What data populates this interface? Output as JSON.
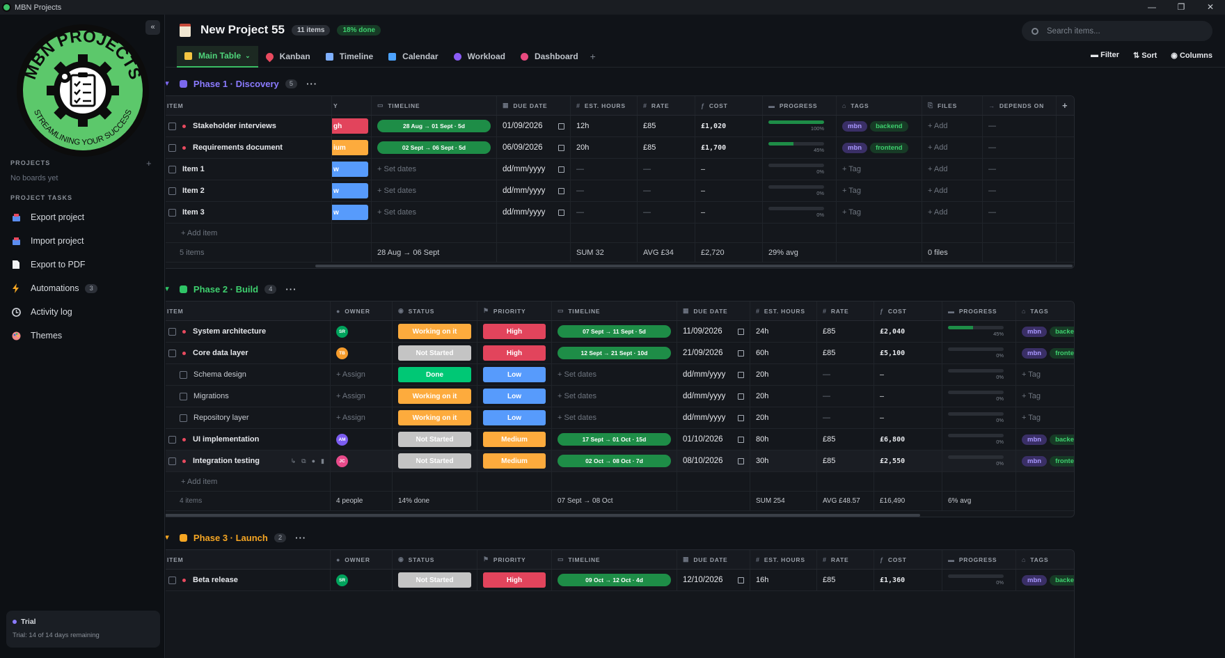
{
  "window": {
    "title": "MBN Projects",
    "controls": [
      "—",
      "❐",
      "✕"
    ]
  },
  "sidebar": {
    "collapse_label": "«",
    "logo_text_top": "MBN PROJECTS",
    "logo_text_bottom": "STREAMLINING YOUR SUCCESS",
    "projects_label": "PROJECTS",
    "projects_add": "+",
    "no_boards": "No boards yet",
    "tasks_label": "PROJECT TASKS",
    "items": [
      {
        "label": "Export project",
        "icon": "export-icon"
      },
      {
        "label": "Import project",
        "icon": "import-icon"
      },
      {
        "label": "Export to PDF",
        "icon": "pdf-icon"
      },
      {
        "label": "Automations",
        "icon": "lightning-icon",
        "badge": "3"
      },
      {
        "label": "Activity log",
        "icon": "clock-icon"
      },
      {
        "label": "Themes",
        "icon": "palette-icon"
      }
    ],
    "trial": {
      "title": "Trial",
      "detail": "Trial: 14 of 14 days remaining"
    }
  },
  "header": {
    "title": "New Project 55",
    "items_pill": "11 items",
    "done_pill": "18% done",
    "search_placeholder": "Search items..."
  },
  "tabs": [
    {
      "label": "Main Table",
      "caret": "⌄",
      "color": "#f4c542"
    },
    {
      "label": "Kanban",
      "color": "#e84a5f"
    },
    {
      "label": "Timeline",
      "color": "#7fb0ff"
    },
    {
      "label": "Calendar",
      "color": "#4da3ff"
    },
    {
      "label": "Workload",
      "color": "#8b5cf6"
    },
    {
      "label": "Dashboard",
      "color": "#e84a7f"
    }
  ],
  "tab_add": "+",
  "view_actions": {
    "filter": "Filter",
    "sort": "Sort",
    "columns": "Columns"
  },
  "colors": {
    "phase1": "#7b68ee",
    "phase2": "#2fc466",
    "phase3": "#f6a623",
    "working": "#fdab3d",
    "done": "#00c875",
    "not_started": "#c4c4c4",
    "high": "#e2445c",
    "low": "#579bfc",
    "medium": "#fdab3d"
  },
  "phase1": {
    "title": "Phase 1 · Discovery",
    "count": "5",
    "more": "···",
    "headers": {
      "item": "ITEM",
      "prev": "Y",
      "timeline": "TIMELINE",
      "due": "DUE DATE",
      "hours": "EST. HOURS",
      "rate": "RATE",
      "cost": "COST",
      "progress": "PROGRESS",
      "tags": "TAGS",
      "files": "FILES",
      "depends": "DEPENDS ON",
      "add": "+"
    },
    "rows": [
      {
        "item": "Stakeholder interviews",
        "prev": "gh",
        "prev_color": "#e2445c",
        "timeline": "28 Aug → 01 Sept · 5d",
        "due": "01/09/2026",
        "hours": "12h",
        "rate": "£85",
        "cost": "£1,020",
        "progress": 100,
        "progress_label": "100%",
        "tags": [
          "mbn",
          "backend"
        ],
        "files": "+ Add",
        "depends": "—"
      },
      {
        "item": "Requirements document",
        "prev": "ium",
        "prev_color": "#fdab3d",
        "timeline": "02 Sept → 06 Sept · 5d",
        "due": "06/09/2026",
        "hours": "20h",
        "rate": "£85",
        "cost": "£1,700",
        "progress": 45,
        "progress_label": "45%",
        "tags": [
          "mbn",
          "frontend"
        ],
        "files": "+ Add",
        "depends": "—"
      },
      {
        "item": "Item 1",
        "prev": "w",
        "prev_color": "#579bfc",
        "timeline": "+ Set dates",
        "due": "dd/mm/yyyy",
        "hours": "—",
        "rate": "—",
        "cost": "–",
        "progress": 0,
        "progress_label": "0%",
        "tag_empty": "+ Tag",
        "files": "+ Add",
        "depends": "—"
      },
      {
        "item": "Item 2",
        "prev": "w",
        "prev_color": "#579bfc",
        "timeline": "+ Set dates",
        "due": "dd/mm/yyyy",
        "hours": "—",
        "rate": "—",
        "cost": "–",
        "progress": 0,
        "progress_label": "0%",
        "tag_empty": "+ Tag",
        "files": "+ Add",
        "depends": "—"
      },
      {
        "item": "Item 3",
        "prev": "w",
        "prev_color": "#579bfc",
        "timeline": "+ Set dates",
        "due": "dd/mm/yyyy",
        "hours": "—",
        "rate": "—",
        "cost": "–",
        "progress": 0,
        "progress_label": "0%",
        "tag_empty": "+ Tag",
        "files": "+ Add",
        "depends": "—"
      }
    ],
    "add_item": "+ Add item",
    "footer": {
      "items": "5 items",
      "timeline": "28 Aug → 06 Sept",
      "hours": "SUM 32",
      "rate": "AVG £34",
      "cost": "£2,720",
      "progress": "29% avg",
      "files": "0 files"
    }
  },
  "phase2": {
    "title": "Phase 2 · Build",
    "count": "4",
    "more": "···",
    "headers": {
      "item": "ITEM",
      "owner": "OWNER",
      "status": "STATUS",
      "priority": "PRIORITY",
      "timeline": "TIMELINE",
      "due": "DUE DATE",
      "hours": "EST. HOURS",
      "rate": "RATE",
      "cost": "COST",
      "progress": "PROGRESS",
      "tags": "TAGS"
    },
    "rows": [
      {
        "item": "System architecture",
        "owner": "SR",
        "owner_color": "#00a35c",
        "status": "Working on it",
        "status_color": "#fdab3d",
        "priority": "High",
        "priority_color": "#e2445c",
        "timeline": "07 Sept → 11 Sept · 5d",
        "due": "11/09/2026",
        "hours": "24h",
        "rate": "£85",
        "cost": "£2,040",
        "progress": 45,
        "progress_label": "45%",
        "tags": [
          "mbn",
          "backend"
        ]
      },
      {
        "item": "Core data layer",
        "owner": "TB",
        "owner_color": "#f59b2b",
        "status": "Not Started",
        "status_color": "#c4c4c4",
        "priority": "High",
        "priority_color": "#e2445c",
        "timeline": "12 Sept → 21 Sept · 10d",
        "due": "21/09/2026",
        "hours": "60h",
        "rate": "£85",
        "cost": "£5,100",
        "progress": 0,
        "progress_label": "0%",
        "tags": [
          "mbn",
          "frontend"
        ]
      },
      {
        "item": "Schema design",
        "sub": true,
        "owner_empty": "+ Assign",
        "status": "Done",
        "status_color": "#00c875",
        "priority": "Low",
        "priority_color": "#579bfc",
        "timeline": "+ Set dates",
        "due": "dd/mm/yyyy",
        "hours": "20h",
        "rate": "—",
        "cost": "–",
        "progress": 0,
        "progress_label": "0%",
        "tag_empty": "+ Tag"
      },
      {
        "item": "Migrations",
        "sub": true,
        "owner_empty": "+ Assign",
        "status": "Working on it",
        "status_color": "#fdab3d",
        "priority": "Low",
        "priority_color": "#579bfc",
        "timeline": "+ Set dates",
        "due": "dd/mm/yyyy",
        "hours": "20h",
        "rate": "—",
        "cost": "–",
        "progress": 0,
        "progress_label": "0%",
        "tag_empty": "+ Tag"
      },
      {
        "item": "Repository layer",
        "sub": true,
        "owner_empty": "+ Assign",
        "status": "Working on it",
        "status_color": "#fdab3d",
        "priority": "Low",
        "priority_color": "#579bfc",
        "timeline": "+ Set dates",
        "due": "dd/mm/yyyy",
        "hours": "20h",
        "rate": "—",
        "cost": "–",
        "progress": 0,
        "progress_label": "0%",
        "tag_empty": "+ Tag"
      },
      {
        "item": "UI implementation",
        "owner": "AM",
        "owner_color": "#7b5cf0",
        "status": "Not Started",
        "status_color": "#c4c4c4",
        "priority": "Medium",
        "priority_color": "#fdab3d",
        "timeline": "17 Sept → 01 Oct · 15d",
        "due": "01/10/2026",
        "hours": "80h",
        "rate": "£85",
        "cost": "£6,800",
        "progress": 0,
        "progress_label": "0%",
        "tags": [
          "mbn",
          "backend"
        ]
      },
      {
        "item": "Integration testing",
        "owner": "JC",
        "owner_color": "#e84a8a",
        "status": "Not Started",
        "status_color": "#c4c4c4",
        "priority": "Medium",
        "priority_color": "#fdab3d",
        "timeline": "02 Oct → 08 Oct · 7d",
        "due": "08/10/2026",
        "hours": "30h",
        "rate": "£85",
        "cost": "£2,550",
        "progress": 0,
        "progress_label": "0%",
        "tags": [
          "mbn",
          "frontend"
        ],
        "hover": true
      }
    ],
    "add_item": "+ Add item",
    "footer": {
      "items": "4 items",
      "owner": "4 people",
      "status": "14% done",
      "timeline": "07 Sept → 08 Oct",
      "hours": "SUM 254",
      "rate": "AVG £48.57",
      "cost": "£16,490",
      "progress": "6% avg"
    }
  },
  "phase3": {
    "title": "Phase 3 · Launch",
    "count": "2",
    "more": "···",
    "rows": [
      {
        "item": "Beta release",
        "owner": "SR",
        "owner_color": "#00a35c",
        "status": "Not Started",
        "status_color": "#c4c4c4",
        "priority": "High",
        "priority_color": "#e2445c",
        "timeline": "09 Oct → 12 Oct · 4d",
        "due": "12/10/2026",
        "hours": "16h",
        "rate": "£85",
        "cost": "£1,360",
        "progress": 0,
        "progress_label": "0%",
        "tags": [
          "mbn",
          "backend"
        ]
      }
    ]
  }
}
